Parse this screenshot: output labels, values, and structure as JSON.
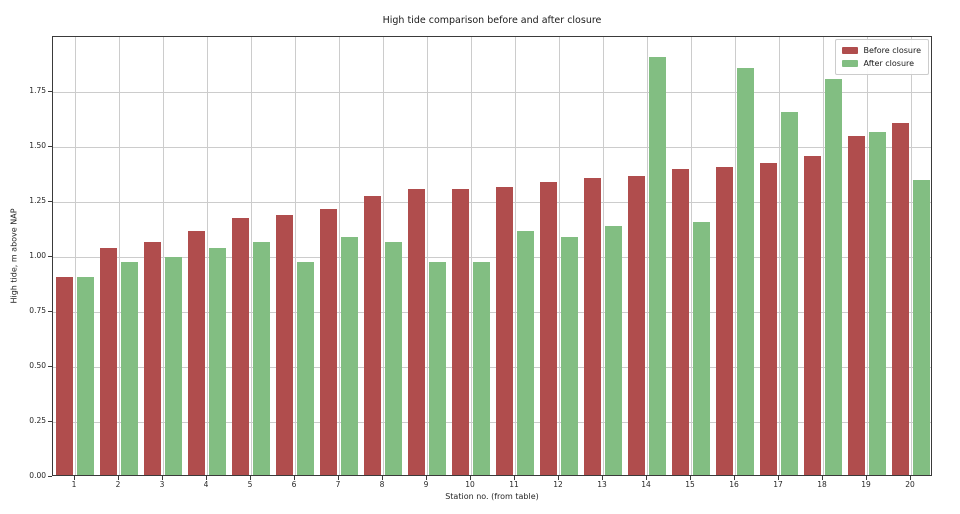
{
  "chart_data": {
    "type": "bar",
    "title": "High tide comparison before and after closure",
    "xlabel": "Station no. (from table)",
    "ylabel": "High tide, m above NAP",
    "categories": [
      "1",
      "2",
      "3",
      "4",
      "5",
      "6",
      "7",
      "8",
      "9",
      "10",
      "11",
      "12",
      "13",
      "14",
      "15",
      "16",
      "17",
      "18",
      "19",
      "20"
    ],
    "series": [
      {
        "name": "Before closure",
        "color": "#b04d4d",
        "values": [
          0.9,
          1.03,
          1.06,
          1.11,
          1.17,
          1.18,
          1.21,
          1.27,
          1.3,
          1.3,
          1.31,
          1.33,
          1.35,
          1.36,
          1.39,
          1.4,
          1.42,
          1.45,
          1.54,
          1.6
        ]
      },
      {
        "name": "After closure",
        "color": "#82be82",
        "values": [
          0.9,
          0.97,
          0.99,
          1.03,
          1.06,
          0.97,
          1.08,
          1.06,
          0.97,
          0.97,
          1.11,
          1.08,
          1.13,
          1.9,
          1.15,
          1.85,
          1.65,
          1.8,
          1.56,
          1.34
        ]
      }
    ],
    "ylim": [
      0,
      2.0
    ],
    "yticks": [
      "0.00",
      "0.25",
      "0.50",
      "0.75",
      "1.00",
      "1.25",
      "1.50",
      "1.75"
    ],
    "grid": true,
    "legend_position": "upper right"
  }
}
